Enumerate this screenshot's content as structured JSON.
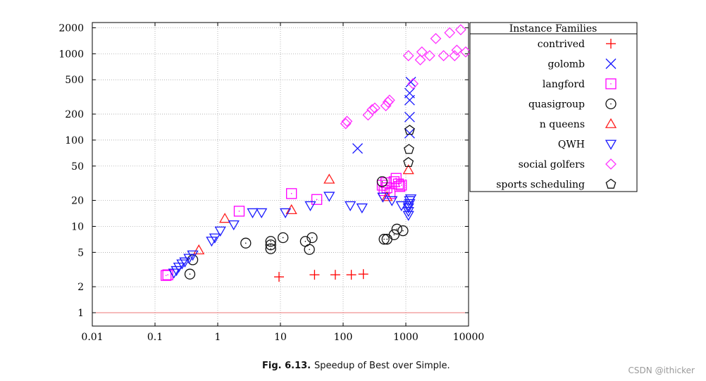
{
  "chart_data": {
    "type": "scatter",
    "title": "",
    "xlabel": "",
    "ylabel": "",
    "xscale": "log",
    "yscale": "log",
    "xlim": [
      0.01,
      10000
    ],
    "ylim": [
      0.7,
      2300
    ],
    "x_ticks": [
      0.01,
      0.1,
      1,
      10,
      100,
      1000,
      10000
    ],
    "x_tick_labels": [
      "0.01",
      "0.1",
      "1",
      "10",
      "100",
      "1000",
      "10000"
    ],
    "y_ticks": [
      1,
      2,
      5,
      10,
      20,
      50,
      100,
      200,
      500,
      1000,
      2000
    ],
    "y_tick_labels": [
      "1",
      "2",
      "5",
      "10",
      "20",
      "50",
      "100",
      "200",
      "500",
      "1000",
      "2000"
    ],
    "grid": true,
    "reference_line": {
      "y": 1,
      "color": "#ee7777"
    },
    "legend": {
      "title": "Instance Families",
      "placement": "top-right outside"
    },
    "series": [
      {
        "name": "contrived",
        "marker": "plus",
        "color": "#ff0000",
        "points": [
          [
            9.5,
            2.6
          ],
          [
            35,
            2.75
          ],
          [
            75,
            2.75
          ],
          [
            135,
            2.75
          ],
          [
            210,
            2.8
          ]
        ]
      },
      {
        "name": "golomb",
        "marker": "x",
        "color": "#1a1aff",
        "points": [
          [
            170,
            80
          ],
          [
            1150,
            120
          ],
          [
            1150,
            185
          ],
          [
            1150,
            290
          ],
          [
            1150,
            350
          ],
          [
            1200,
            470
          ]
        ]
      },
      {
        "name": "langford",
        "marker": "square",
        "color": "#ff00ff",
        "points": [
          [
            0.15,
            2.7
          ],
          [
            0.16,
            2.75
          ],
          [
            2.2,
            15
          ],
          [
            15,
            24
          ],
          [
            38,
            20.5
          ],
          [
            420,
            30
          ],
          [
            450,
            26
          ],
          [
            480,
            32
          ],
          [
            500,
            28
          ],
          [
            560,
            24
          ],
          [
            650,
            33
          ],
          [
            700,
            36
          ],
          [
            760,
            31
          ],
          [
            800,
            29
          ],
          [
            850,
            30
          ]
        ]
      },
      {
        "name": "quasigroup",
        "marker": "circle",
        "color": "#111111",
        "points": [
          [
            0.36,
            2.8
          ],
          [
            0.4,
            4.1
          ],
          [
            2.8,
            6.4
          ],
          [
            7,
            6.7
          ],
          [
            7,
            6.1
          ],
          [
            7,
            5.5
          ],
          [
            11,
            7.4
          ],
          [
            25,
            6.7
          ],
          [
            29,
            5.4
          ],
          [
            32,
            7.4
          ],
          [
            420,
            33
          ],
          [
            450,
            7.1
          ],
          [
            500,
            7.1
          ],
          [
            650,
            8
          ],
          [
            720,
            9.3
          ],
          [
            900,
            8.9
          ]
        ]
      },
      {
        "name": "n queens",
        "marker": "triangle-up",
        "color": "#ff2020",
        "points": [
          [
            0.5,
            5.3
          ],
          [
            1.3,
            12.3
          ],
          [
            15,
            15.5
          ],
          [
            60,
            35
          ],
          [
            500,
            22
          ],
          [
            1100,
            45
          ]
        ]
      },
      {
        "name": "QWH",
        "marker": "triangle-down",
        "color": "#1a1aff",
        "points": [
          [
            0.2,
            2.9
          ],
          [
            0.22,
            3.1
          ],
          [
            0.24,
            3.4
          ],
          [
            0.27,
            3.7
          ],
          [
            0.3,
            3.9
          ],
          [
            0.35,
            4.3
          ],
          [
            0.4,
            4.7
          ],
          [
            0.8,
            6.8
          ],
          [
            0.9,
            7.4
          ],
          [
            1.1,
            8.9
          ],
          [
            1.8,
            10.5
          ],
          [
            3.6,
            14.5
          ],
          [
            5,
            14.5
          ],
          [
            12,
            14.5
          ],
          [
            30,
            17.5
          ],
          [
            60,
            22.5
          ],
          [
            130,
            17.5
          ],
          [
            200,
            16.5
          ],
          [
            430,
            22
          ],
          [
            600,
            20
          ],
          [
            850,
            17.5
          ],
          [
            1100,
            13.5
          ],
          [
            1100,
            15
          ],
          [
            1100,
            16.5
          ],
          [
            1100,
            17.5
          ],
          [
            1150,
            18.5
          ],
          [
            1150,
            20
          ],
          [
            1200,
            21
          ]
        ]
      },
      {
        "name": "social golfers",
        "marker": "diamond",
        "color": "#ff33ff",
        "points": [
          [
            110,
            155
          ],
          [
            115,
            165
          ],
          [
            250,
            195
          ],
          [
            290,
            225
          ],
          [
            320,
            235
          ],
          [
            480,
            250
          ],
          [
            520,
            275
          ],
          [
            550,
            290
          ],
          [
            1100,
            950
          ],
          [
            1300,
            450
          ],
          [
            1700,
            850
          ],
          [
            1800,
            1050
          ],
          [
            2400,
            950
          ],
          [
            3000,
            1500
          ],
          [
            4000,
            950
          ],
          [
            5000,
            1750
          ],
          [
            6000,
            950
          ],
          [
            6500,
            1100
          ],
          [
            7500,
            1900
          ],
          [
            9000,
            1050
          ]
        ]
      },
      {
        "name": "sports scheduling",
        "marker": "pentagon",
        "color": "#111111",
        "points": [
          [
            1100,
            55
          ],
          [
            1120,
            78
          ],
          [
            1150,
            130
          ]
        ]
      }
    ]
  },
  "caption": {
    "label": "Fig. 6.13.",
    "text": "Speedup of Best over Simple."
  },
  "watermark": "CSDN @ithicker"
}
